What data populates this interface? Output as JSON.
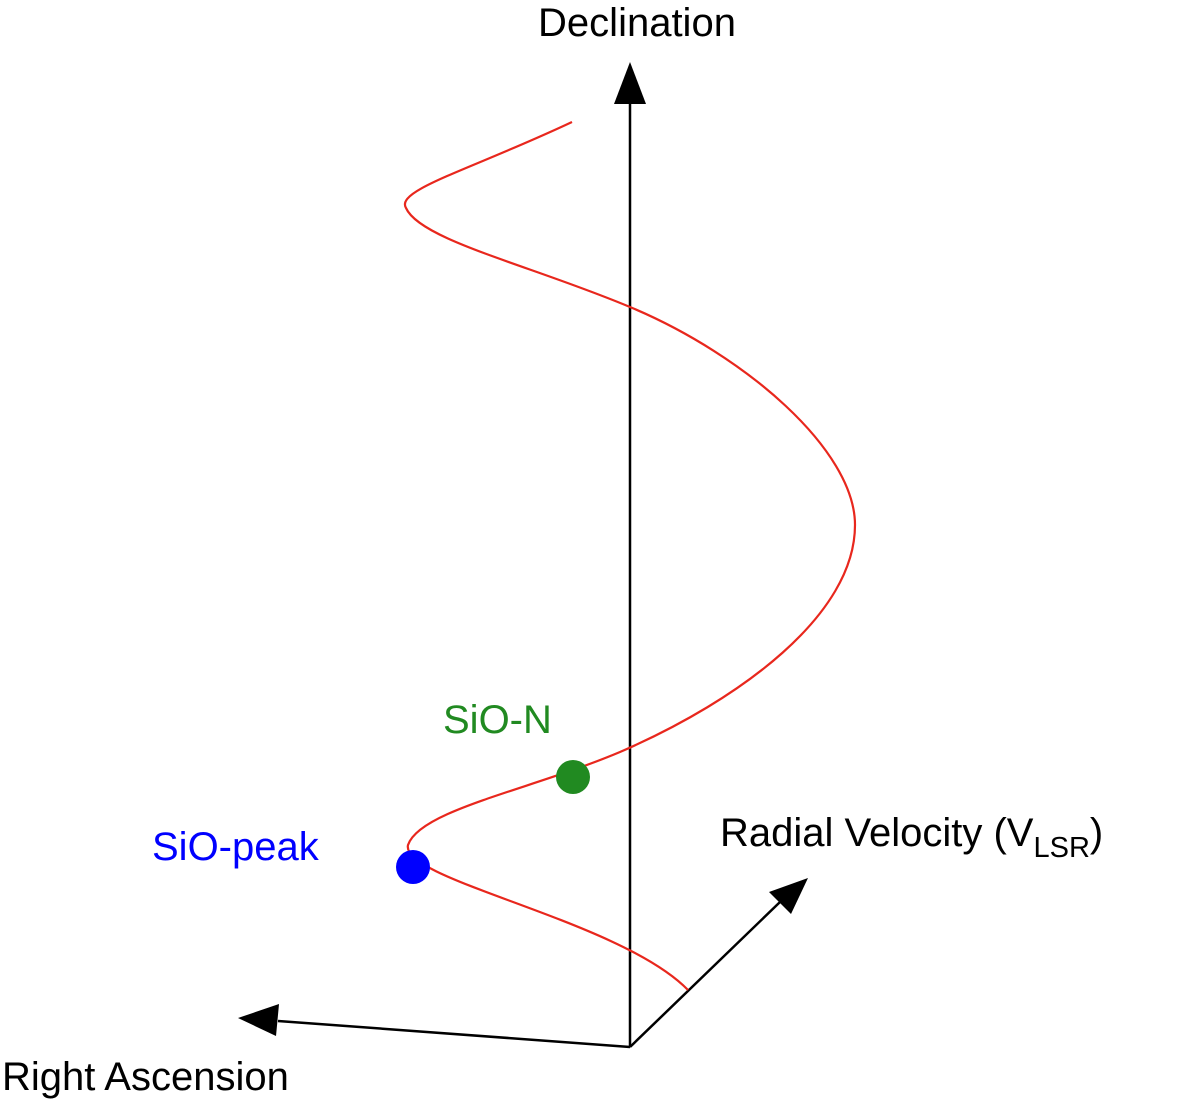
{
  "axes": {
    "declination_label": "Declination",
    "right_ascension_label": "Right Ascension",
    "radial_velocity_label": "Radial Velocity (V",
    "radial_velocity_subscript": "LSR",
    "radial_velocity_close": ")"
  },
  "markers": {
    "sio_n": {
      "label": "SiO-N",
      "color": "#218a21"
    },
    "sio_peak": {
      "label": "SiO-peak",
      "color": "#0000ff"
    }
  },
  "colors": {
    "axis": "#000000",
    "helix": "#e8271d"
  }
}
